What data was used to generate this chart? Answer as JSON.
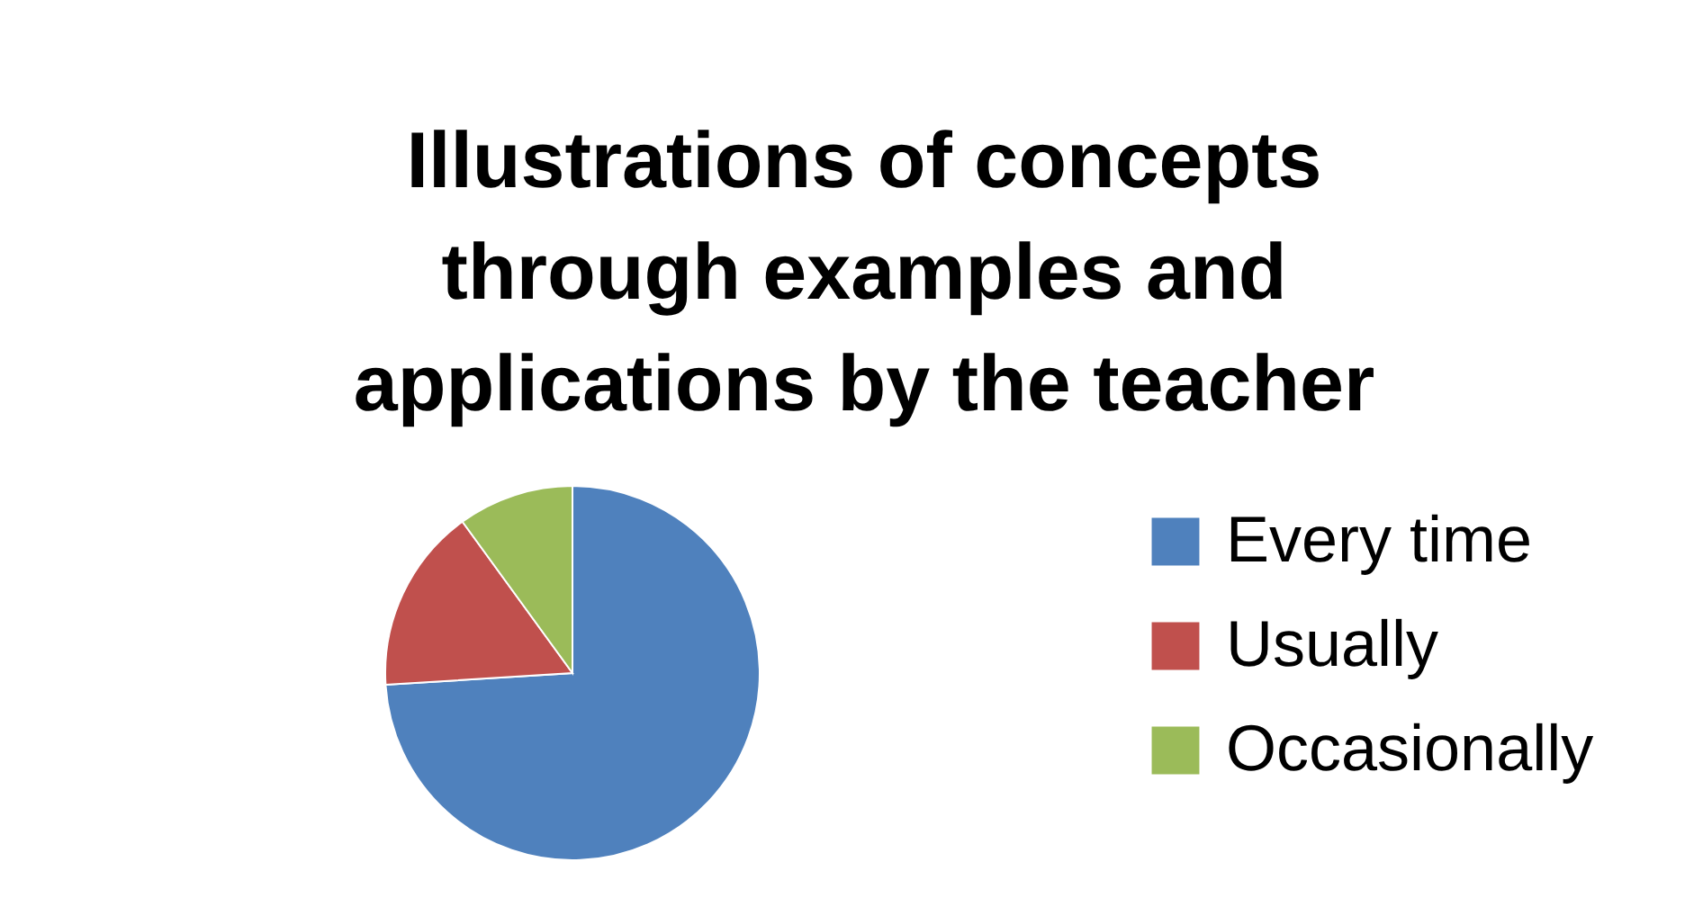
{
  "chart_data": {
    "type": "pie",
    "title": "Illustrations of concepts through examples and applications by the teacher",
    "categories": [
      "Every time",
      "Usually",
      "Occasionally"
    ],
    "values": [
      74,
      16,
      10
    ],
    "colors": [
      "#4f81bd",
      "#c0504d",
      "#9bbb59"
    ],
    "legend": "right"
  }
}
